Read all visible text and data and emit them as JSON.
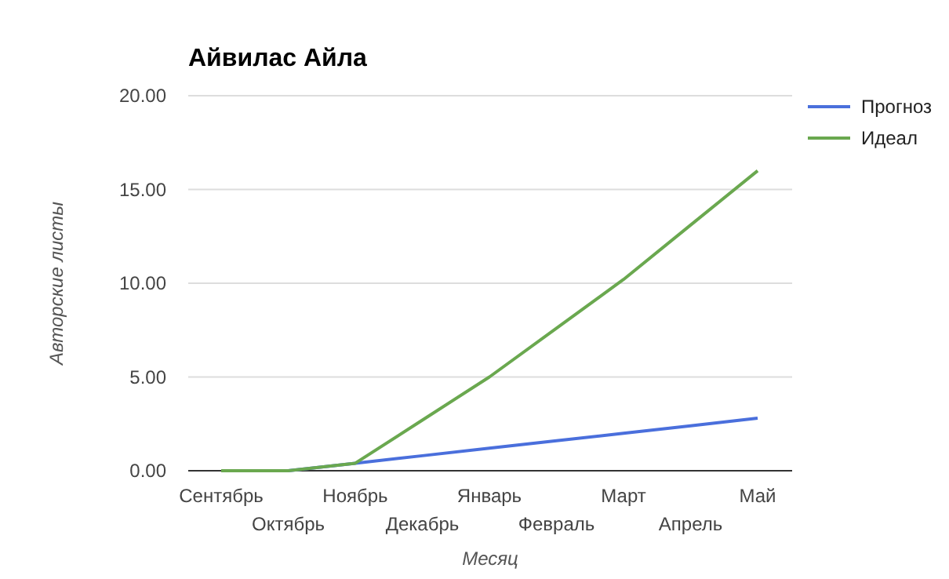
{
  "chart_data": {
    "type": "line",
    "title": "Айвилас Айла",
    "xlabel": "Месяц",
    "ylabel": "Авторские листы",
    "categories": [
      "Сентябрь",
      "Октябрь",
      "Ноябрь",
      "Декабрь",
      "Январь",
      "Февраль",
      "Март",
      "Апрель",
      "Май"
    ],
    "series": [
      {
        "name": "Прогноз",
        "color": "#4a6fdc",
        "values": [
          0,
          0,
          0.4,
          0.8,
          1.2,
          1.6,
          2.0,
          2.4,
          2.8
        ]
      },
      {
        "name": "Идеал",
        "color": "#6aa84f",
        "values": [
          0,
          0,
          0.4,
          2.7,
          5.0,
          7.6,
          10.2,
          13.1,
          16.0
        ]
      }
    ],
    "ylim": [
      0,
      20
    ],
    "yticks": [
      {
        "value": 0,
        "label": "0.00"
      },
      {
        "value": 5,
        "label": "5.00"
      },
      {
        "value": 10,
        "label": "10.00"
      },
      {
        "value": 15,
        "label": "15.00"
      },
      {
        "value": 20,
        "label": "20.00"
      }
    ],
    "grid": "y",
    "legend": "top right",
    "marker": "none",
    "line_style": "solid"
  }
}
